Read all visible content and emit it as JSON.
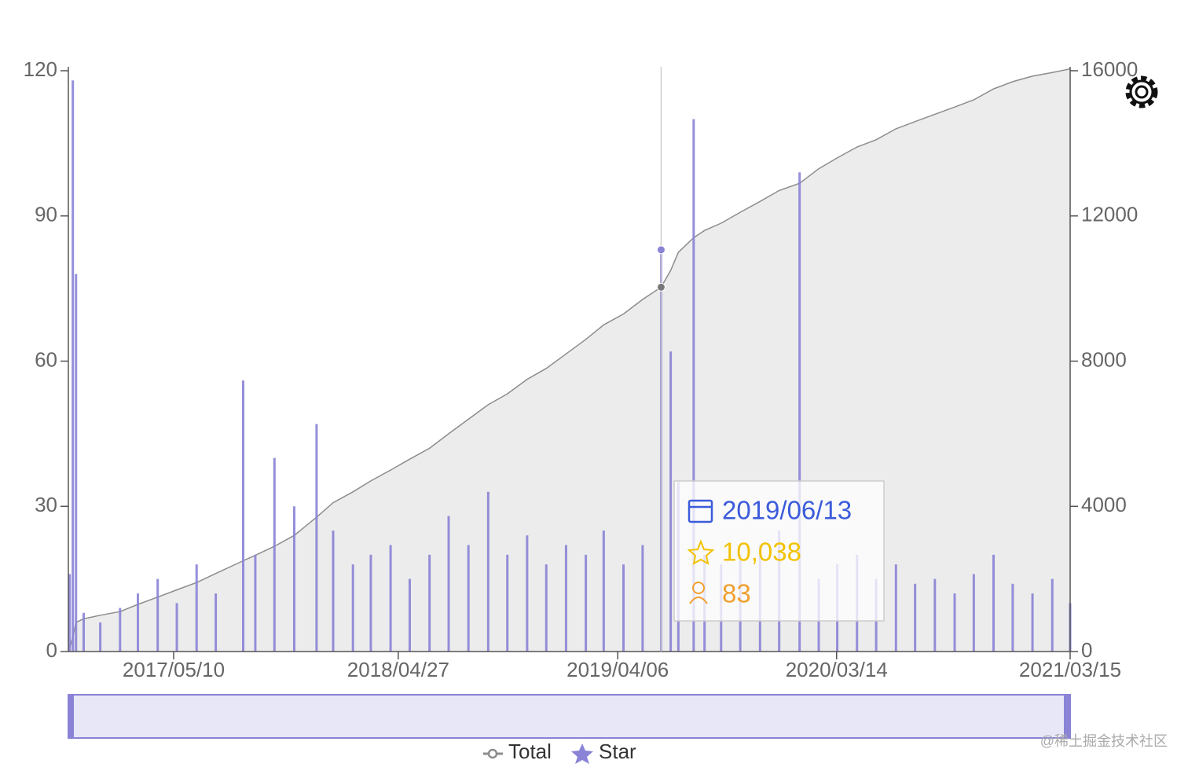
{
  "chart_data": {
    "type": "combo",
    "x": [
      "2016/11/28",
      "2016/12/03",
      "2016/12/08",
      "2016/12/20",
      "2017/01/15",
      "2017/02/15",
      "2017/03/15",
      "2017/04/15",
      "2017/05/15",
      "2017/06/15",
      "2017/07/15",
      "2017/08/27",
      "2017/09/15",
      "2017/10/15",
      "2017/11/15",
      "2017/12/20",
      "2018/01/15",
      "2018/02/15",
      "2018/03/15",
      "2018/04/15",
      "2018/05/15",
      "2018/06/15",
      "2018/07/15",
      "2018/08/15",
      "2018/09/15",
      "2018/10/15",
      "2018/11/15",
      "2018/12/15",
      "2019/01/15",
      "2019/02/15",
      "2019/03/15",
      "2019/04/15",
      "2019/05/15",
      "2019/06/13",
      "2019/06/28",
      "2019/07/10",
      "2019/08/03",
      "2019/08/20",
      "2019/09/15",
      "2019/10/15",
      "2019/11/15",
      "2019/12/15",
      "2020/01/16",
      "2020/02/15",
      "2020/03/15",
      "2020/04/15",
      "2020/05/15",
      "2020/06/15",
      "2020/07/15",
      "2020/08/15",
      "2020/09/15",
      "2020/10/15",
      "2020/11/15",
      "2020/12/15",
      "2021/01/15",
      "2021/02/15",
      "2021/03/15"
    ],
    "series": [
      {
        "name": "Total",
        "color": "#8c8c8c",
        "axis": "y2",
        "values": [
          100,
          400,
          800,
          900,
          1000,
          1100,
          1300,
          1500,
          1700,
          1900,
          2150,
          2500,
          2650,
          2900,
          3200,
          3700,
          4100,
          4400,
          4700,
          5000,
          5300,
          5600,
          6000,
          6400,
          6800,
          7100,
          7500,
          7800,
          8200,
          8600,
          9000,
          9300,
          9700,
          10038,
          10500,
          11000,
          11400,
          11600,
          11800,
          12100,
          12400,
          12700,
          12900,
          13300,
          13600,
          13900,
          14100,
          14400,
          14600,
          14800,
          15000,
          15200,
          15500,
          15700,
          15850,
          15950,
          16050
        ]
      },
      {
        "name": "Star",
        "color": "#8a83d6",
        "values": [
          16,
          118,
          78,
          8,
          6,
          9,
          12,
          15,
          10,
          18,
          12,
          56,
          20,
          40,
          30,
          47,
          25,
          18,
          20,
          22,
          15,
          20,
          28,
          22,
          33,
          20,
          24,
          18,
          22,
          20,
          25,
          18,
          22,
          83,
          62,
          35,
          110,
          20,
          18,
          20,
          22,
          25,
          99,
          15,
          18,
          20,
          15,
          18,
          14,
          15,
          12,
          16,
          20,
          14,
          12,
          15,
          10
        ]
      }
    ],
    "xlim": [
      "2016/11/26",
      "2021/03/15"
    ],
    "xticks": [
      "2017/05/10",
      "2018/04/27",
      "2019/04/06",
      "2020/03/14",
      "2021/03/15"
    ],
    "ylim": [
      0,
      120
    ],
    "yticks": [
      0,
      30,
      60,
      90,
      120
    ],
    "y2lim": [
      0,
      16000
    ],
    "y2ticks": [
      0,
      4000,
      8000,
      12000,
      16000
    ],
    "tooltip": {
      "date": "2019/06/13",
      "total": {
        "value": 10038,
        "label": "10,038"
      },
      "star": 83
    },
    "watermark": "@稀土掘金技术社区"
  }
}
